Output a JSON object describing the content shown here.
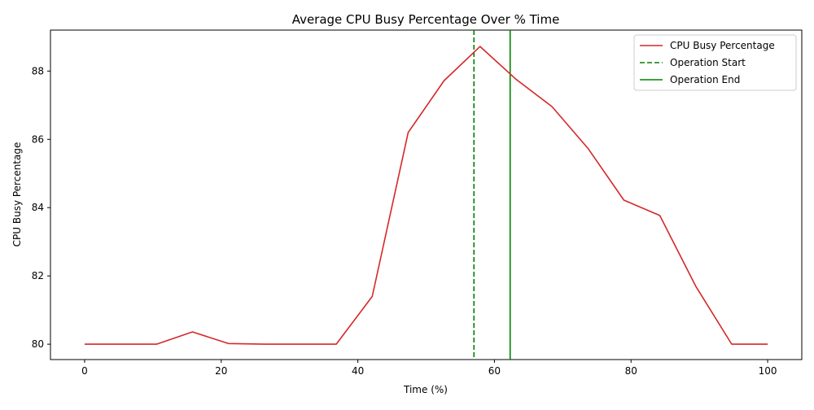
{
  "chart_data": {
    "type": "line",
    "title": "Average CPU Busy Percentage Over % Time",
    "xlabel": "Time (%)",
    "ylabel": "CPU Busy Percentage",
    "xlim": [
      -5,
      105
    ],
    "ylim": [
      79.55,
      89.2
    ],
    "x_ticks": [
      0,
      20,
      40,
      60,
      80,
      100
    ],
    "y_ticks": [
      80,
      82,
      84,
      86,
      88
    ],
    "x_tick_labels": [
      "0",
      "20",
      "40",
      "60",
      "80",
      "100"
    ],
    "y_tick_labels": [
      "80",
      "82",
      "84",
      "86",
      "88"
    ],
    "grid": false,
    "legend_position": "top-right",
    "series": [
      {
        "name": "CPU Busy Percentage",
        "color": "#d62728",
        "x": [
          0,
          5.26,
          10.53,
          15.79,
          21.05,
          26.32,
          31.58,
          36.84,
          42.11,
          47.37,
          52.63,
          57.89,
          63.16,
          68.42,
          73.68,
          78.95,
          84.21,
          89.47,
          94.74,
          100
        ],
        "y": [
          80.0,
          80.0,
          80.0,
          80.36,
          80.02,
          80.0,
          80.0,
          80.0,
          81.4,
          86.2,
          87.72,
          88.72,
          87.76,
          86.96,
          85.74,
          84.22,
          83.77,
          81.7,
          80.0,
          80.0
        ]
      }
    ],
    "vlines": [
      {
        "name": "Operation Start",
        "x": 57.0,
        "color": "#008000",
        "style": "dashed"
      },
      {
        "name": "Operation End",
        "x": 62.3,
        "color": "#008000",
        "style": "solid"
      }
    ]
  }
}
